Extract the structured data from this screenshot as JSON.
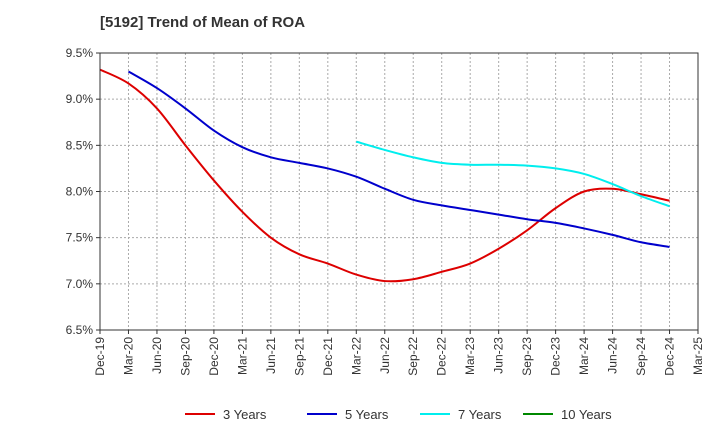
{
  "chart_data": {
    "type": "line",
    "title": "[5192]  Trend of Mean of ROA",
    "xlabel": "",
    "ylabel": "",
    "ylim": [
      6.5,
      9.5
    ],
    "y_ticks": [
      "6.5%",
      "7.0%",
      "7.5%",
      "8.0%",
      "8.5%",
      "9.0%",
      "9.5%"
    ],
    "y_tick_values": [
      6.5,
      7.0,
      7.5,
      8.0,
      8.5,
      9.0,
      9.5
    ],
    "categories": [
      "Dec-19",
      "Mar-20",
      "Jun-20",
      "Sep-20",
      "Dec-20",
      "Mar-21",
      "Jun-21",
      "Sep-21",
      "Dec-21",
      "Mar-22",
      "Jun-22",
      "Sep-22",
      "Dec-22",
      "Mar-23",
      "Jun-23",
      "Sep-23",
      "Dec-23",
      "Mar-24",
      "Jun-24",
      "Sep-24",
      "Dec-24",
      "Mar-25"
    ],
    "grid": true,
    "legend_position": "bottom",
    "series": [
      {
        "name": "3 Years",
        "color": "#dd0000",
        "values": [
          9.32,
          9.17,
          8.9,
          8.5,
          8.12,
          7.78,
          7.5,
          7.32,
          7.22,
          7.1,
          7.03,
          7.05,
          7.13,
          7.22,
          7.38,
          7.58,
          7.82,
          8.0,
          8.03,
          7.97,
          7.9,
          null
        ]
      },
      {
        "name": "5 Years",
        "color": "#0000cc",
        "values": [
          null,
          9.3,
          9.12,
          8.9,
          8.66,
          8.48,
          8.37,
          8.31,
          8.25,
          8.16,
          8.03,
          7.91,
          7.85,
          7.8,
          7.75,
          7.7,
          7.66,
          7.6,
          7.53,
          7.45,
          7.4,
          null
        ]
      },
      {
        "name": "7 Years",
        "color": "#00eeee",
        "values": [
          null,
          null,
          null,
          null,
          null,
          null,
          null,
          null,
          null,
          8.54,
          8.45,
          8.37,
          8.31,
          8.29,
          8.29,
          8.28,
          8.25,
          8.19,
          8.08,
          7.95,
          7.84,
          null
        ]
      },
      {
        "name": "10 Years",
        "color": "#008800",
        "values": [
          null,
          null,
          null,
          null,
          null,
          null,
          null,
          null,
          null,
          null,
          null,
          null,
          null,
          null,
          null,
          null,
          null,
          null,
          null,
          null,
          null,
          null
        ]
      }
    ]
  }
}
